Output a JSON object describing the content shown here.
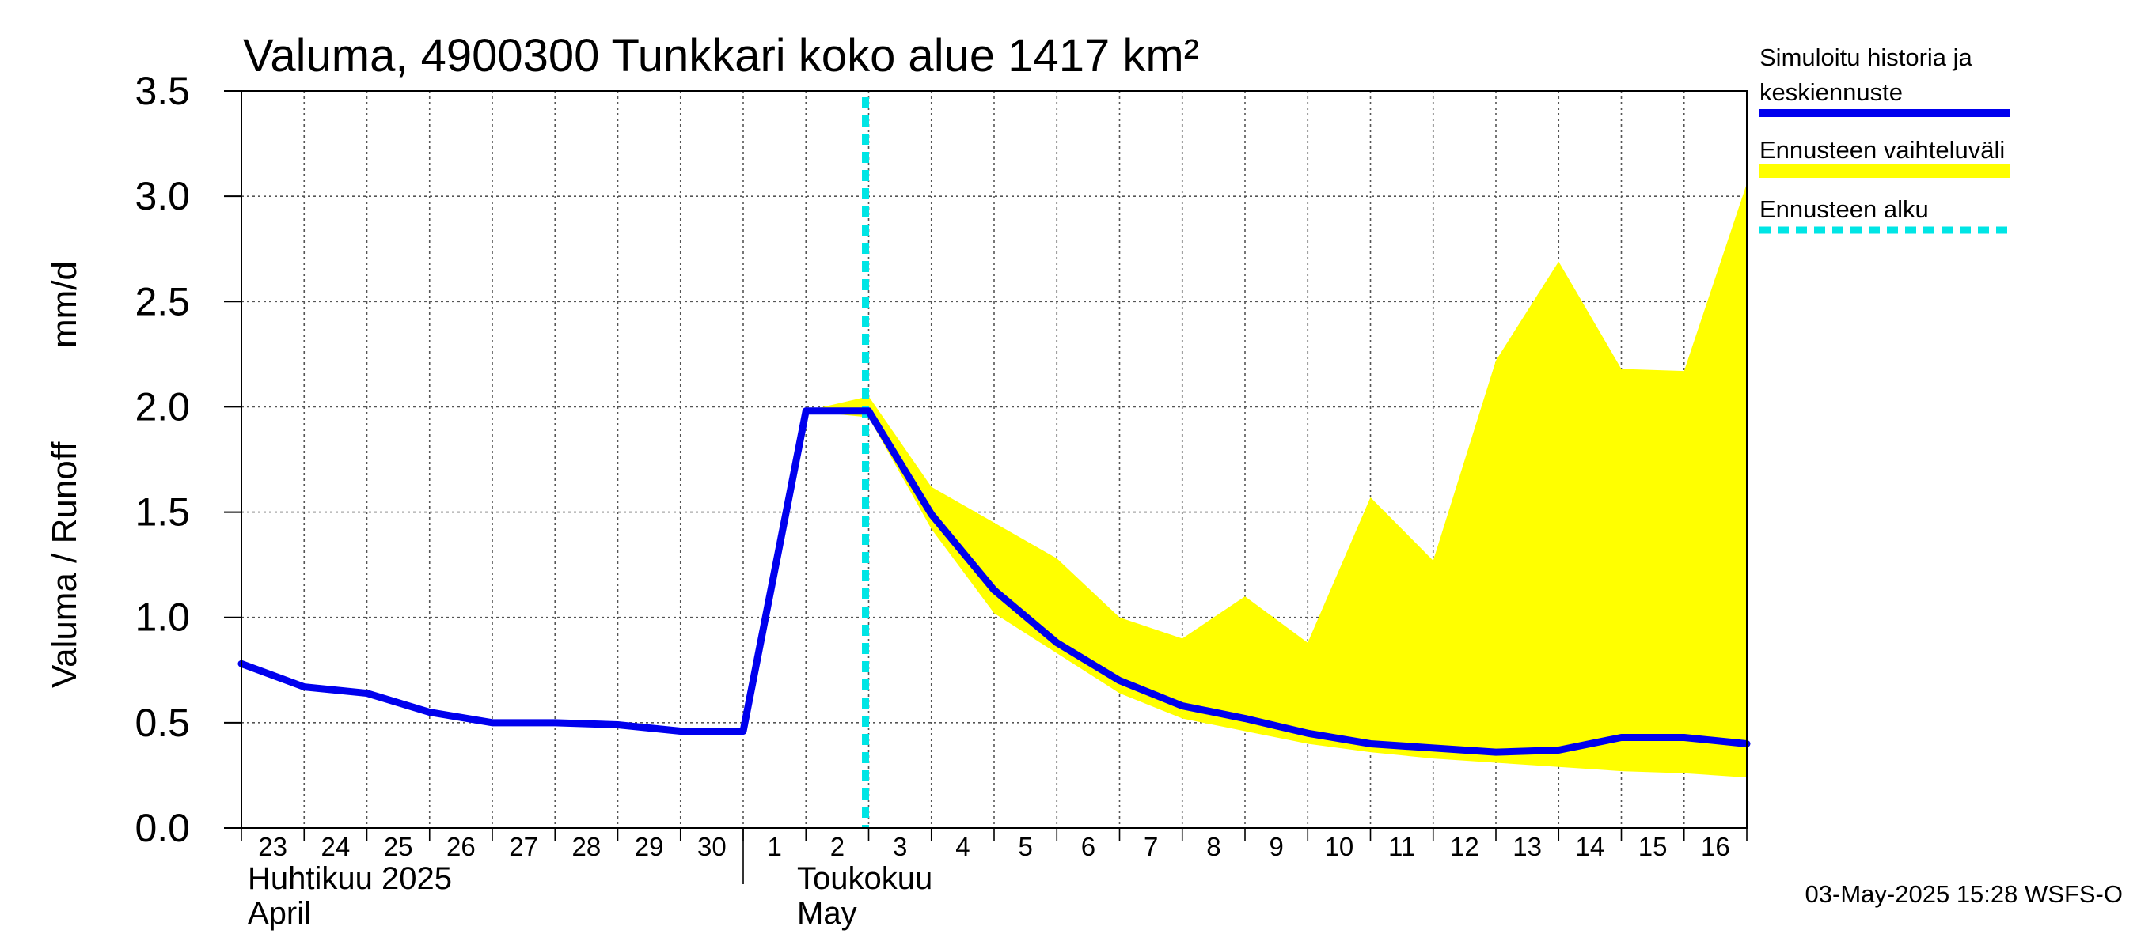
{
  "chart_data": {
    "type": "line",
    "title": "Valuma, 4900300 Tunkkari koko alue 1417 km²",
    "ylabel_fi": "Valuma / Runoff",
    "ylabel_unit": "mm/d",
    "ylim": [
      0,
      3.5
    ],
    "yticks": [
      "0.0",
      "0.5",
      "1.0",
      "1.5",
      "2.0",
      "2.5",
      "3.0",
      "3.5"
    ],
    "ytick_values": [
      0,
      0.5,
      1.0,
      1.5,
      2.0,
      2.5,
      3.0,
      3.5
    ],
    "x_days": [
      "23",
      "24",
      "25",
      "26",
      "27",
      "28",
      "29",
      "30",
      "1",
      "2",
      "3",
      "4",
      "5",
      "6",
      "7",
      "8",
      "9",
      "10",
      "11",
      "12",
      "13",
      "14",
      "15",
      "16"
    ],
    "months": [
      {
        "name_fi": "Huhtikuu  2025",
        "name_en": "April",
        "start_index": 0
      },
      {
        "name_fi": "Toukokuu",
        "name_en": "May",
        "start_index": 8
      }
    ],
    "forecast_start_index": 10,
    "series": [
      {
        "name": "Simuloitu historia ja keskiennuste",
        "color": "#0000ee",
        "x": [
          0,
          1,
          2,
          3,
          4,
          5,
          6,
          7,
          8,
          9,
          10,
          11,
          12,
          13,
          14,
          15,
          16,
          17,
          18,
          19,
          20,
          21,
          22,
          23,
          24
        ],
        "values": [
          0.78,
          0.67,
          0.64,
          0.55,
          0.5,
          0.5,
          0.49,
          0.46,
          0.46,
          1.98,
          1.98,
          1.49,
          1.13,
          0.88,
          0.7,
          0.58,
          0.52,
          0.45,
          0.4,
          0.38,
          0.36,
          0.37,
          0.43,
          0.43,
          0.4
        ]
      }
    ],
    "band": {
      "name": "Ennusteen vaihteluväli",
      "color": "#ffff00",
      "x": [
        9,
        10,
        11,
        12,
        13,
        14,
        15,
        16,
        17,
        18,
        19,
        20,
        21,
        22,
        23,
        24
      ],
      "upper": [
        1.98,
        2.05,
        1.62,
        1.45,
        1.28,
        1.0,
        0.9,
        1.1,
        0.88,
        1.57,
        1.27,
        2.22,
        2.69,
        2.18,
        2.17,
        3.06
      ],
      "lower": [
        1.98,
        1.95,
        1.42,
        1.02,
        0.83,
        0.64,
        0.52,
        0.46,
        0.4,
        0.36,
        0.33,
        0.31,
        0.29,
        0.27,
        0.26,
        0.24
      ]
    },
    "legend": [
      {
        "label_line1": "Simuloitu historia ja",
        "label_line2": "keskiennuste",
        "color": "#0000ee",
        "style": "solid"
      },
      {
        "label_line1": "Ennusteen vaihteluväli",
        "color": "#ffff00",
        "style": "band"
      },
      {
        "label_line1": "Ennusteen alku",
        "color": "#00e5e5",
        "style": "dashed"
      }
    ],
    "timestamp": "03-May-2025 15:28 WSFS-O"
  }
}
